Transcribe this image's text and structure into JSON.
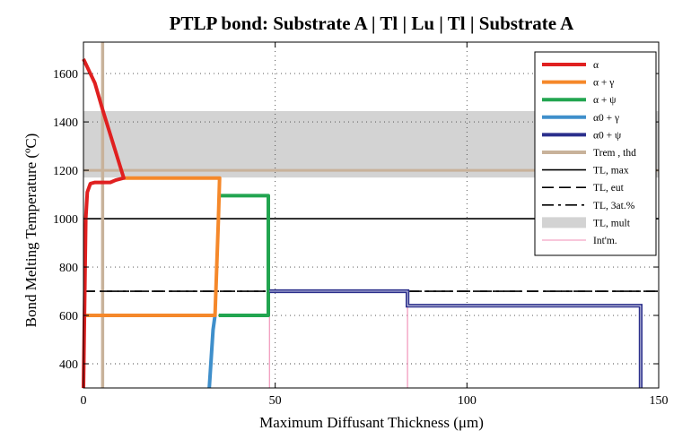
{
  "chart_data": {
    "type": "line",
    "title": "PTLP bond: Substrate A | Tl | Lu | Tl | Substrate A",
    "xlabel": "Maximum Diffusant Thickness (μm)",
    "ylabel": "Bond Melting Temperature (ºC)",
    "xlim": [
      0,
      150
    ],
    "ylim": [
      300,
      1730
    ],
    "x_ticks": [
      0,
      50,
      100,
      150
    ],
    "y_ticks": [
      400,
      600,
      800,
      1000,
      1200,
      1400,
      1600
    ],
    "grid": "dotted",
    "legend_position": "top-right",
    "band": {
      "name": "T_L,mult",
      "y_range": [
        1170,
        1445
      ],
      "color": "#d3d3d3"
    },
    "hlines": [
      {
        "name": "T_L,max",
        "y": 1000,
        "style": "solid",
        "color": "#000000"
      },
      {
        "name": "T_L,eut",
        "y": 700,
        "style": "dashed",
        "color": "#000000"
      },
      {
        "name": "T_L,3at.%",
        "y": 700,
        "style": "dashdot",
        "color": "#000000"
      },
      {
        "name": "T_rem",
        "y": 1200,
        "style": "solid",
        "color": "#c8b29a"
      }
    ],
    "vlines": [
      {
        "name": "th_d",
        "x": 5,
        "color": "#c8b29a"
      },
      {
        "name": "Int'm. 1",
        "x": 48.5,
        "y_range": [
          300,
          700
        ],
        "color": "#f08cb4"
      },
      {
        "name": "Int'm. 2",
        "x": 84.5,
        "y_range": [
          300,
          700
        ],
        "color": "#f08cb4"
      }
    ],
    "series": [
      {
        "name": "α",
        "color": "#e02020",
        "points": [
          [
            0,
            300
          ],
          [
            0.6,
            1000
          ],
          [
            1,
            1110
          ],
          [
            1.8,
            1145
          ],
          [
            3,
            1150
          ],
          [
            7,
            1150
          ],
          [
            8.5,
            1160
          ],
          [
            10.5,
            1168
          ],
          [
            5,
            1450
          ],
          [
            3,
            1560
          ],
          [
            0,
            1660
          ]
        ]
      },
      {
        "name": "α + γ",
        "color": "#f5882a",
        "points": [
          [
            0,
            600
          ],
          [
            34.3,
            600
          ],
          [
            35.2,
            1000
          ],
          [
            35.5,
            1168
          ],
          [
            10.5,
            1168
          ]
        ]
      },
      {
        "name": "α + ψ",
        "color": "#22a550",
        "points": [
          [
            35.3,
            600
          ],
          [
            48.2,
            600
          ],
          [
            48.2,
            1095
          ],
          [
            35.5,
            1095
          ]
        ]
      },
      {
        "name": "α0 + γ",
        "color": "#3f8fcb",
        "points": [
          [
            32.8,
            300
          ],
          [
            33.8,
            540
          ],
          [
            34.3,
            600
          ]
        ]
      },
      {
        "name": "α0 + ψ",
        "color": "#2b2f8c",
        "points": [
          [
            48.5,
            700
          ],
          [
            84.5,
            700
          ],
          [
            84.5,
            640
          ],
          [
            145.3,
            640
          ],
          [
            145.3,
            300
          ]
        ]
      }
    ],
    "legend": [
      {
        "label": "α",
        "kind": "line",
        "style": "solid",
        "color": "#e02020"
      },
      {
        "label": "α + γ",
        "kind": "line",
        "style": "solid",
        "color": "#f5882a"
      },
      {
        "label": "α + ψ",
        "kind": "line",
        "style": "solid",
        "color": "#22a550"
      },
      {
        "label": "α0 + γ",
        "kind": "line",
        "style": "solid",
        "color": "#3f8fcb"
      },
      {
        "label": "α0 + ψ",
        "kind": "line",
        "style": "solid",
        "color": "#2b2f8c"
      },
      {
        "label": "Trem , thd",
        "kind": "line",
        "style": "solid",
        "color": "#c8b29a"
      },
      {
        "label": "TL, max",
        "kind": "thin",
        "style": "solid",
        "color": "#000000"
      },
      {
        "label": "TL, eut",
        "kind": "thin",
        "style": "dashed",
        "color": "#000000"
      },
      {
        "label": "TL, 3at.%",
        "kind": "thin",
        "style": "dashdot",
        "color": "#000000"
      },
      {
        "label": "TL, mult",
        "kind": "patch",
        "style": "solid",
        "color": "#d3d3d3"
      },
      {
        "label": "Int'm.",
        "kind": "hair",
        "style": "solid",
        "color": "#f08cb4"
      }
    ]
  }
}
